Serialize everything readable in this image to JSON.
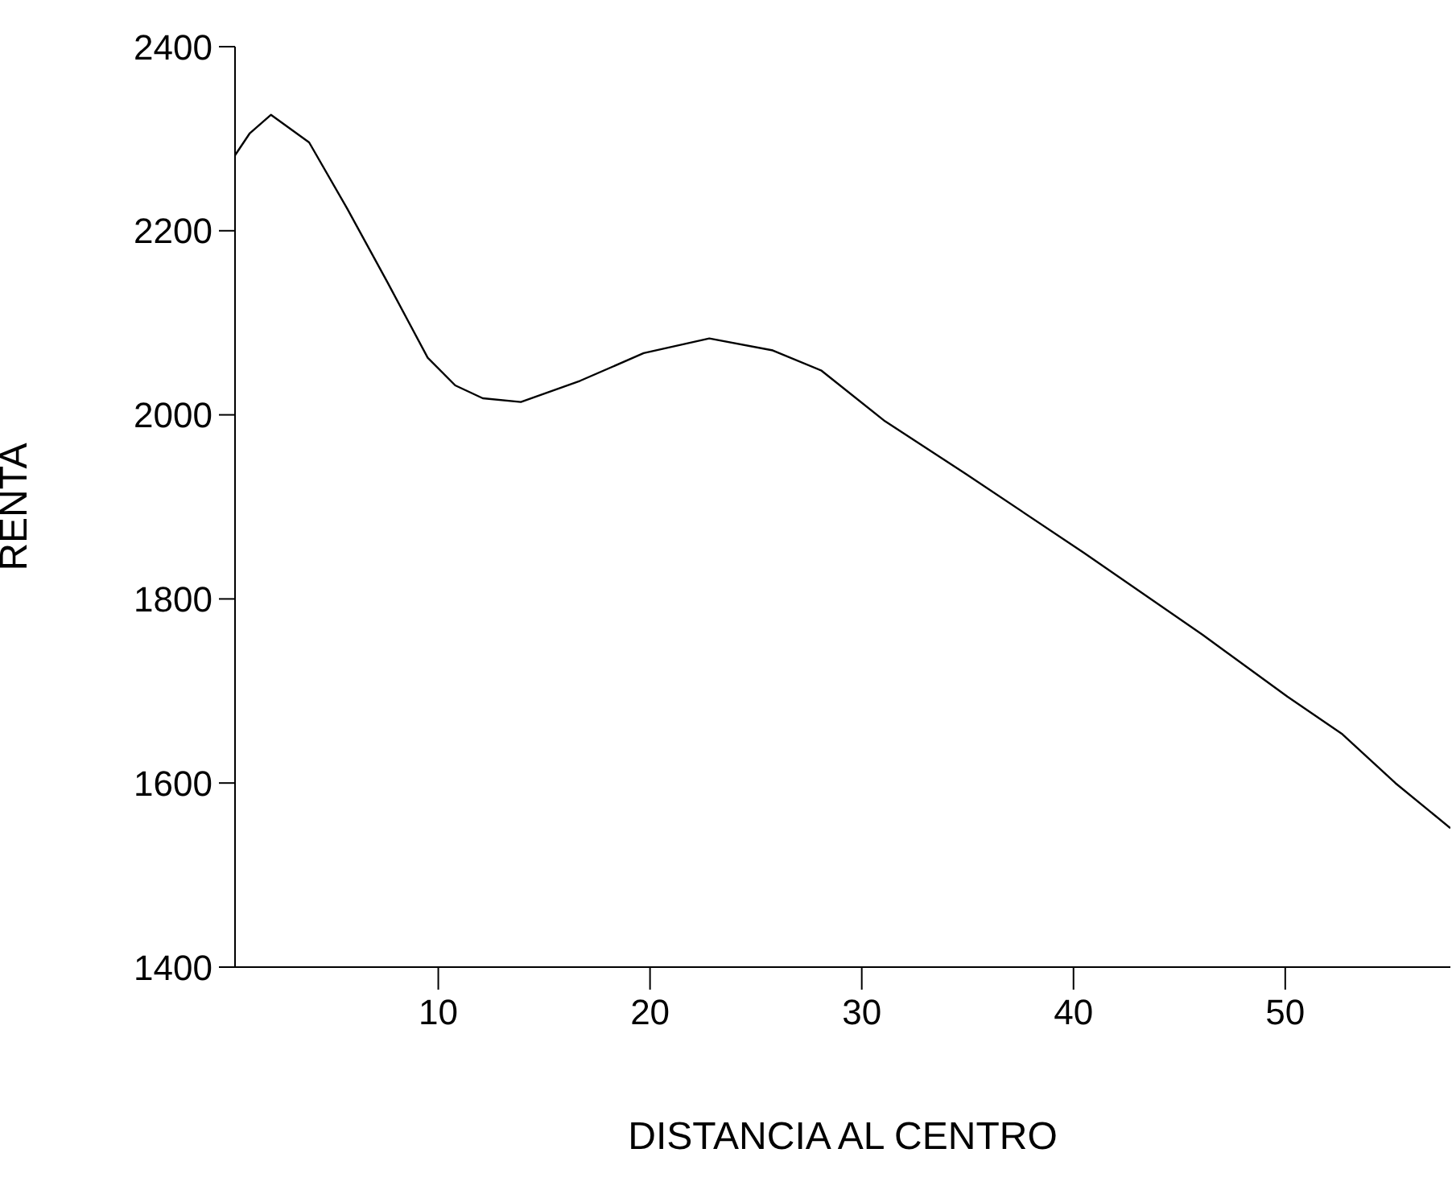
{
  "chart_data": {
    "type": "line",
    "xlabel": "DISTANCIA AL CENTRO",
    "ylabel": "RENTA",
    "x": [
      0.4,
      1.1,
      2.1,
      3.9,
      5.7,
      7.6,
      9.5,
      10.8,
      12.1,
      13.9,
      16.7,
      19.7,
      22.8,
      25.8,
      28.1,
      31.1,
      34.9,
      40.5,
      46.1,
      50.1,
      52.7,
      55.2,
      57.8
    ],
    "series": [
      {
        "color": "#000000",
        "values": [
          2282,
          2306,
          2326,
          2296,
          2224,
          2144,
          2062,
          2032,
          2018,
          2014,
          2037,
          2067,
          2083,
          2070,
          2048,
          1993,
          1936,
          1850,
          1761,
          1694,
          1653,
          1600,
          1551
        ]
      }
    ],
    "xlim": [
      0.4,
      57.8
    ],
    "xticks": [
      10,
      20,
      30,
      40,
      50
    ],
    "ylim": [
      1400,
      2400
    ],
    "yticks": [
      1400,
      1600,
      1800,
      2000,
      2200,
      2400
    ],
    "grid": false,
    "legend": false,
    "marker": "none",
    "line_style": "solid"
  }
}
